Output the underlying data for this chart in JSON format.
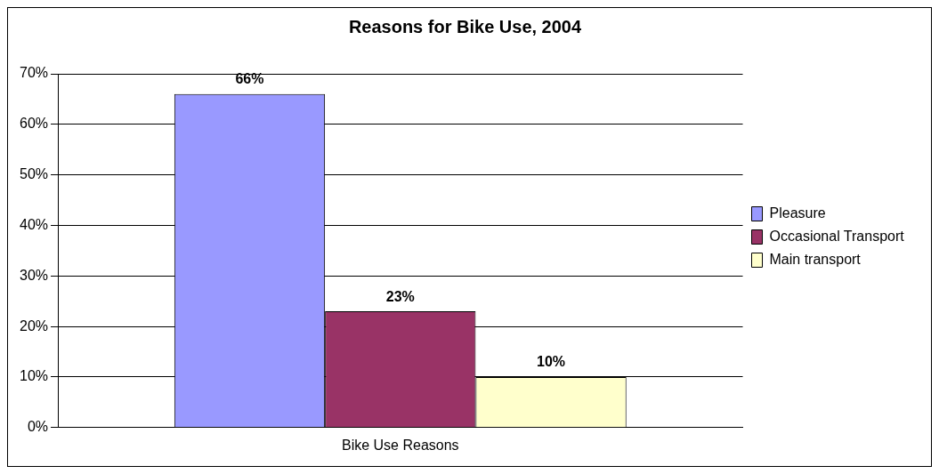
{
  "chart_data": {
    "type": "bar",
    "title": "Reasons for Bike Use, 2004",
    "categories": [
      "Bike Use Reasons"
    ],
    "series": [
      {
        "name": "Pleasure",
        "color": "#9999ff",
        "values": [
          66
        ],
        "value_labels": [
          "66%"
        ]
      },
      {
        "name": "Occasional Transport",
        "color": "#993366",
        "values": [
          23
        ],
        "value_labels": [
          "23%"
        ]
      },
      {
        "name": "Main transport",
        "color": "#ffffcc",
        "values": [
          10
        ],
        "value_labels": [
          "10%"
        ]
      }
    ],
    "ylim": [
      0,
      70
    ],
    "yticks": [
      {
        "value": 0,
        "label": "0%"
      },
      {
        "value": 10,
        "label": "10%"
      },
      {
        "value": 20,
        "label": "20%"
      },
      {
        "value": 30,
        "label": "30%"
      },
      {
        "value": 40,
        "label": "40%"
      },
      {
        "value": 50,
        "label": "50%"
      },
      {
        "value": 60,
        "label": "60%"
      },
      {
        "value": 70,
        "label": "70%"
      }
    ],
    "grid": "y",
    "legend": "right"
  }
}
